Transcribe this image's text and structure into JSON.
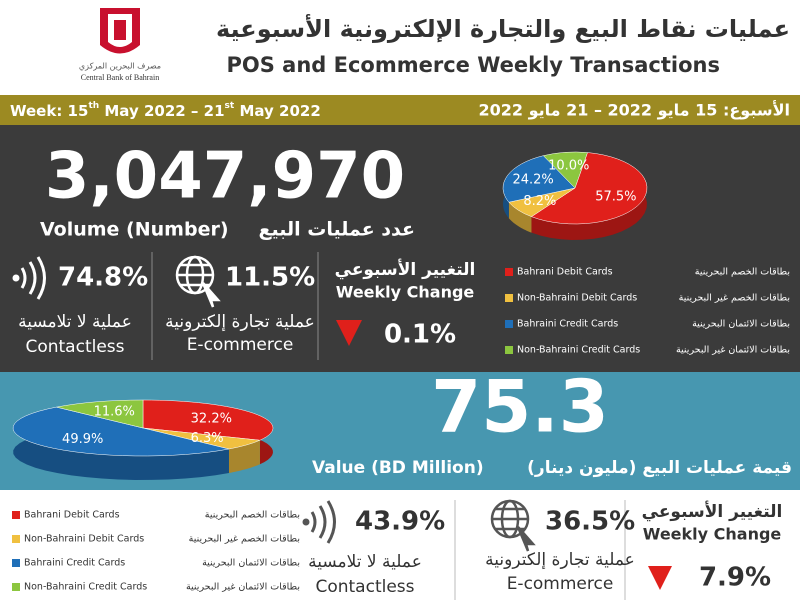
{
  "header": {
    "title_ar": "عمليات نقاط البيع والتجارة الإلكترونية الأسبوعية",
    "title_en": "POS and Ecommerce Weekly Transactions",
    "logo_ar": "مصرف البحرين المركزي",
    "logo_en": "Central Bank of Bahrain"
  },
  "week": {
    "en_parts": [
      "Week: 15",
      "th",
      " May 2022 – 21",
      "st",
      " May 2022"
    ],
    "ar": "الأسبوع: 15 مايو 2022 – 21 مايو 2022"
  },
  "volume": {
    "total": "3,047,970",
    "label_en": "Volume (Number)",
    "label_ar": "عدد عمليات البيع",
    "contactless": {
      "value": "74.8%",
      "ar": "عملية لا تلامسية",
      "en": "Contactless"
    },
    "ecommerce": {
      "value": "11.5%",
      "ar": "عملية تجارة إلكترونية",
      "en": "E-commerce"
    },
    "weekly_change": {
      "ar": "التغيير الأسبوعي",
      "en": "Weekly Change",
      "value": "0.1%"
    }
  },
  "value": {
    "total": "75.3",
    "label_en": "Value (BD Million)",
    "label_ar": "قيمة عمليات البيع (مليون دينار)",
    "contactless": {
      "value": "43.9%",
      "ar": "عملية لا تلامسية",
      "en": "Contactless"
    },
    "ecommerce": {
      "value": "36.5%",
      "ar": "عملية تجارة إلكترونية",
      "en": "E-commerce"
    },
    "weekly_change": {
      "ar": "التغيير الأسبوعي",
      "en": "Weekly Change",
      "value": "7.9%"
    }
  },
  "chart_data": [
    {
      "type": "pie",
      "categories": [
        "Bahrani Debit Cards",
        "Non-Bahraini Debit Cards",
        "Bahraini Credit Cards",
        "Non-Bahraini Credit Cards"
      ],
      "categories_ar": [
        "بطاقات الخصم البحرينية",
        "بطاقات الخصم غير البحرينية",
        "بطاقات الائتمان البحرينية",
        "بطاقات الائتمان غير البحرينية"
      ],
      "values": [
        57.5,
        8.2,
        24.2,
        10.0
      ],
      "value_labels": [
        "57.5%",
        "8.2%",
        "24.2%",
        "10.0%"
      ],
      "colors": [
        "#e0201b",
        "#f0c040",
        "#1f6fb8",
        "#8cc63f"
      ]
    },
    {
      "type": "pie",
      "categories": [
        "Bahrani Debit Cards",
        "Non-Bahraini Debit Cards",
        "Bahraini Credit Cards",
        "Non-Bahraini Credit Cards"
      ],
      "categories_ar": [
        "بطاقات الخصم البحرينية",
        "بطاقات الخصم غير البحرينية",
        "بطاقات الائتمان البحرينية",
        "بطاقات الائتمان غير البحرينية"
      ],
      "values": [
        32.2,
        6.3,
        49.9,
        11.6
      ],
      "value_labels": [
        "32.2%",
        "6.3%",
        "49.9%",
        "11.6%"
      ],
      "colors": [
        "#e0201b",
        "#f0c040",
        "#1f6fb8",
        "#8cc63f"
      ]
    }
  ]
}
